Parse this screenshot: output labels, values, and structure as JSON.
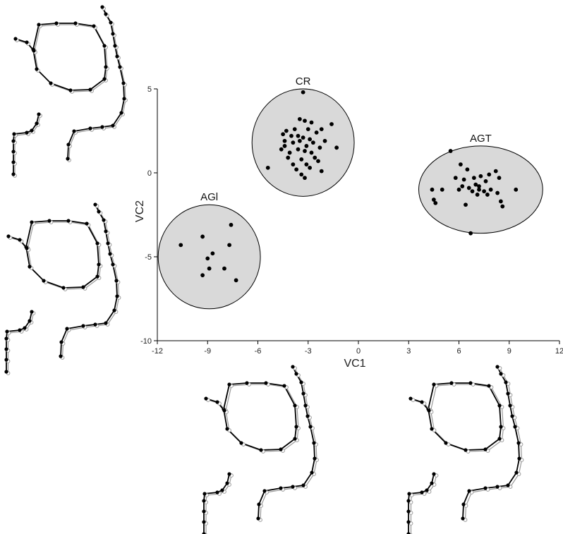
{
  "chart_data": {
    "type": "scatter",
    "title": "",
    "xlabel": "VC1",
    "ylabel": "VC2",
    "xlim": [
      -12,
      12
    ],
    "ylim": [
      -10,
      5
    ],
    "xticks": [
      "-12",
      "-9",
      "-6",
      "-3",
      "0",
      "3",
      "6",
      "9",
      "12"
    ],
    "yticks": [
      "5",
      "0",
      "-5",
      "-10"
    ],
    "grid": false,
    "confidence_ellipses": true,
    "series": [
      {
        "name": "CR",
        "ellipse": {
          "cx": -3.3,
          "cy": 1.8,
          "rx": 3.05,
          "ry": 3.2
        },
        "points": [
          [
            -3.3,
            4.8
          ],
          [
            -3.5,
            3.2
          ],
          [
            -3.2,
            3.1
          ],
          [
            -2.8,
            3.0
          ],
          [
            -4.3,
            2.5
          ],
          [
            -3.8,
            2.6
          ],
          [
            -3.0,
            2.6
          ],
          [
            -2.5,
            2.4
          ],
          [
            -4.5,
            2.3
          ],
          [
            -4.0,
            2.2
          ],
          [
            -3.6,
            2.2
          ],
          [
            -3.3,
            2.1
          ],
          [
            -2.9,
            2.0
          ],
          [
            -2.2,
            2.6
          ],
          [
            -1.6,
            2.9
          ],
          [
            -4.4,
            1.9
          ],
          [
            -3.9,
            1.8
          ],
          [
            -3.5,
            1.9
          ],
          [
            -3.1,
            1.6
          ],
          [
            -2.7,
            1.8
          ],
          [
            -2.3,
            1.5
          ],
          [
            -1.3,
            1.5
          ],
          [
            -4.6,
            1.4
          ],
          [
            -4.1,
            1.2
          ],
          [
            -3.6,
            1.4
          ],
          [
            -3.2,
            1.3
          ],
          [
            -2.8,
            1.2
          ],
          [
            -4.2,
            0.9
          ],
          [
            -3.4,
            0.8
          ],
          [
            -2.6,
            0.9
          ],
          [
            -3.9,
            0.5
          ],
          [
            -3.1,
            0.5
          ],
          [
            -2.4,
            0.7
          ],
          [
            -3.7,
            0.2
          ],
          [
            -2.9,
            0.3
          ],
          [
            -3.4,
            -0.1
          ],
          [
            -3.2,
            -0.3
          ],
          [
            -5.4,
            0.3
          ],
          [
            -2.2,
            0.1
          ],
          [
            -4.4,
            1.6
          ],
          [
            -2.0,
            1.9
          ]
        ]
      },
      {
        "name": "AGT",
        "ellipse": {
          "cx": 7.3,
          "cy": -1.0,
          "rx": 3.7,
          "ry": 2.6
        },
        "points": [
          [
            5.5,
            1.3
          ],
          [
            6.1,
            0.5
          ],
          [
            6.5,
            0.2
          ],
          [
            5.8,
            -0.3
          ],
          [
            6.3,
            -0.4
          ],
          [
            6.9,
            -0.3
          ],
          [
            7.3,
            -0.2
          ],
          [
            7.8,
            -0.1
          ],
          [
            8.2,
            0.1
          ],
          [
            8.4,
            -0.3
          ],
          [
            7.6,
            -0.5
          ],
          [
            7.0,
            -0.7
          ],
          [
            6.6,
            -0.9
          ],
          [
            6.2,
            -0.8
          ],
          [
            7.2,
            -1.0
          ],
          [
            7.5,
            -1.1
          ],
          [
            7.9,
            -1.0
          ],
          [
            8.3,
            -1.2
          ],
          [
            6.8,
            -1.1
          ],
          [
            7.1,
            -1.3
          ],
          [
            7.7,
            -1.3
          ],
          [
            4.4,
            -1.0
          ],
          [
            5.0,
            -1.0
          ],
          [
            4.5,
            -1.6
          ],
          [
            4.6,
            -1.8
          ],
          [
            6.4,
            -1.9
          ],
          [
            8.5,
            -1.7
          ],
          [
            8.6,
            -2.0
          ],
          [
            9.4,
            -1.0
          ],
          [
            6.7,
            -3.6
          ],
          [
            7.2,
            -0.8
          ],
          [
            6.0,
            -1.0
          ]
        ]
      },
      {
        "name": "AGl",
        "ellipse": {
          "cx": -8.9,
          "cy": -5.0,
          "rx": 3.05,
          "ry": 3.1
        },
        "points": [
          [
            -7.6,
            -3.1
          ],
          [
            -10.6,
            -4.3
          ],
          [
            -9.3,
            -3.8
          ],
          [
            -7.7,
            -4.3
          ],
          [
            -8.7,
            -4.8
          ],
          [
            -9.0,
            -5.1
          ],
          [
            -8.9,
            -5.7
          ],
          [
            -8.0,
            -5.7
          ],
          [
            -9.3,
            -6.1
          ],
          [
            -7.3,
            -6.4
          ]
        ]
      }
    ]
  },
  "wireframe_panels": [
    {
      "name": "top-left-wireframe",
      "description_icon": "cranial-landmark-wireframe-icon"
    },
    {
      "name": "middle-left-wireframe",
      "description_icon": "cranial-landmark-wireframe-icon"
    },
    {
      "name": "bottom-center-wireframe",
      "description_icon": "cranial-landmark-wireframe-icon"
    },
    {
      "name": "bottom-right-wireframe",
      "description_icon": "cranial-landmark-wireframe-icon"
    }
  ],
  "colors": {
    "ellipse_fill": "#d9d9d9",
    "point": "#000000",
    "consensus_wireframe": "#9a9a9a",
    "group_wireframe": "#000000"
  }
}
